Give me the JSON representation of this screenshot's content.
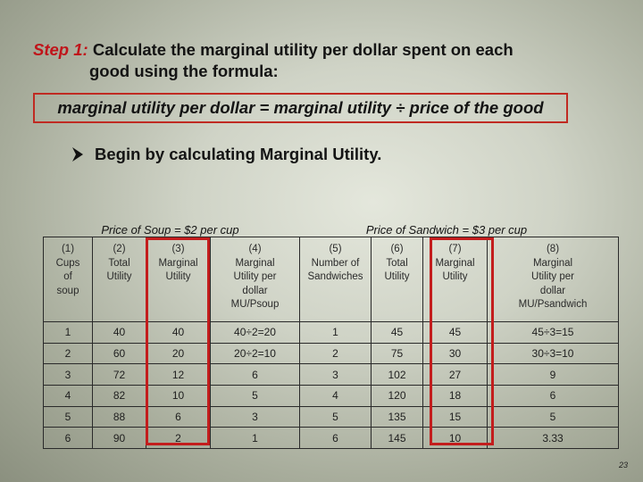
{
  "step": {
    "label": "Step 1:",
    "text_line1": "Calculate the marginal utility per dollar spent on each",
    "text_line2": "good using the formula:"
  },
  "formula": "marginal utility per dollar = marginal utility ÷ price of the good",
  "bullet": {
    "icon": "arrow-bullet-icon",
    "text": "Begin by calculating Marginal Utility."
  },
  "table": {
    "soup_price_heading": "Price of Soup = $2 per cup",
    "sandwich_price_heading": "Price of Sandwich = $3 per cup",
    "columns": [
      "(1)\nCups\nof\nsoup",
      "(2)\nTotal\nUtility",
      "(3)\nMarginal\nUtility",
      "(4)\nMarginal\nUtility per\ndollar\nMU/Psoup",
      "(5)\nNumber of\nSandwiches",
      "(6)\nTotal\nUtility",
      "(7)\nMarginal\nUtility",
      "(8)\nMarginal\nUtility per\ndollar\nMU/Psandwich"
    ],
    "rows": [
      [
        "1",
        "40",
        "40",
        "40÷2=20",
        "1",
        "45",
        "45",
        "45÷3=15"
      ],
      [
        "2",
        "60",
        "20",
        "20÷2=10",
        "2",
        "75",
        "30",
        "30÷3=10"
      ],
      [
        "3",
        "72",
        "12",
        "6",
        "3",
        "102",
        "27",
        "9"
      ],
      [
        "4",
        "82",
        "10",
        "5",
        "4",
        "120",
        "18",
        "6"
      ],
      [
        "5",
        "88",
        "6",
        "3",
        "5",
        "135",
        "15",
        "5"
      ],
      [
        "6",
        "90",
        "2",
        "1",
        "6",
        "145",
        "10",
        "3.33"
      ]
    ]
  },
  "page_number": "23",
  "colors": {
    "accent_red": "#c31d1d",
    "step_label": "#c0141a"
  }
}
